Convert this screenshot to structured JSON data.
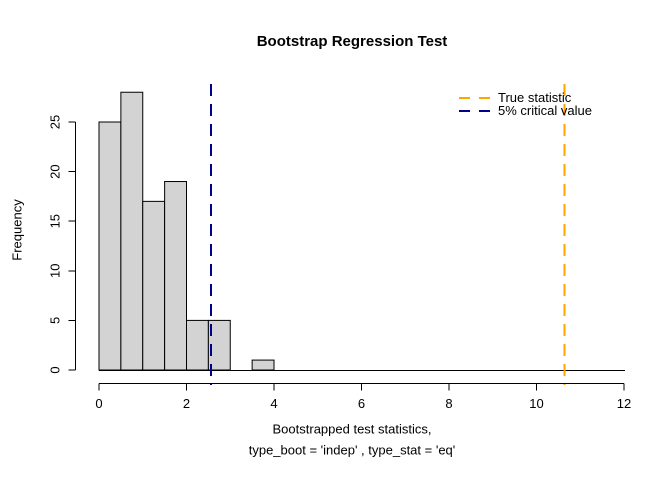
{
  "chart_data": {
    "type": "histogram",
    "title": "Bootstrap Regression Test",
    "ylabel": "Frequency",
    "xlabel_lines": [
      "Bootstrapped test statistics,",
      "type_boot = 'indep' , type_stat = 'eq'"
    ],
    "bin_edges": [
      0,
      0.5,
      1,
      1.5,
      2,
      2.5,
      3,
      3.5,
      4
    ],
    "counts": [
      25,
      28,
      17,
      19,
      5,
      5,
      0,
      1
    ],
    "x_ticks": [
      0,
      2,
      4,
      6,
      8,
      10,
      12
    ],
    "y_ticks": [
      0,
      5,
      10,
      15,
      20,
      25
    ],
    "xlim": [
      0,
      12
    ],
    "ylim": [
      0,
      28
    ],
    "grid": false,
    "bar_fill": "#d3d3d3",
    "bar_stroke": "#000000",
    "axis_color": "#000000",
    "background": "#ffffff",
    "vlines": [
      {
        "name": "true-statistic",
        "x": 10.64,
        "color": "#ffa500",
        "style": "dashed"
      },
      {
        "name": "critical-value",
        "x": 2.56,
        "color": "#00008b",
        "style": "dashed"
      }
    ],
    "legend": {
      "position": "top-right",
      "box": false,
      "items": [
        {
          "label": "True statistic",
          "color": "#ffa500"
        },
        {
          "label": "5% critical value",
          "color": "#00008b"
        }
      ]
    }
  }
}
